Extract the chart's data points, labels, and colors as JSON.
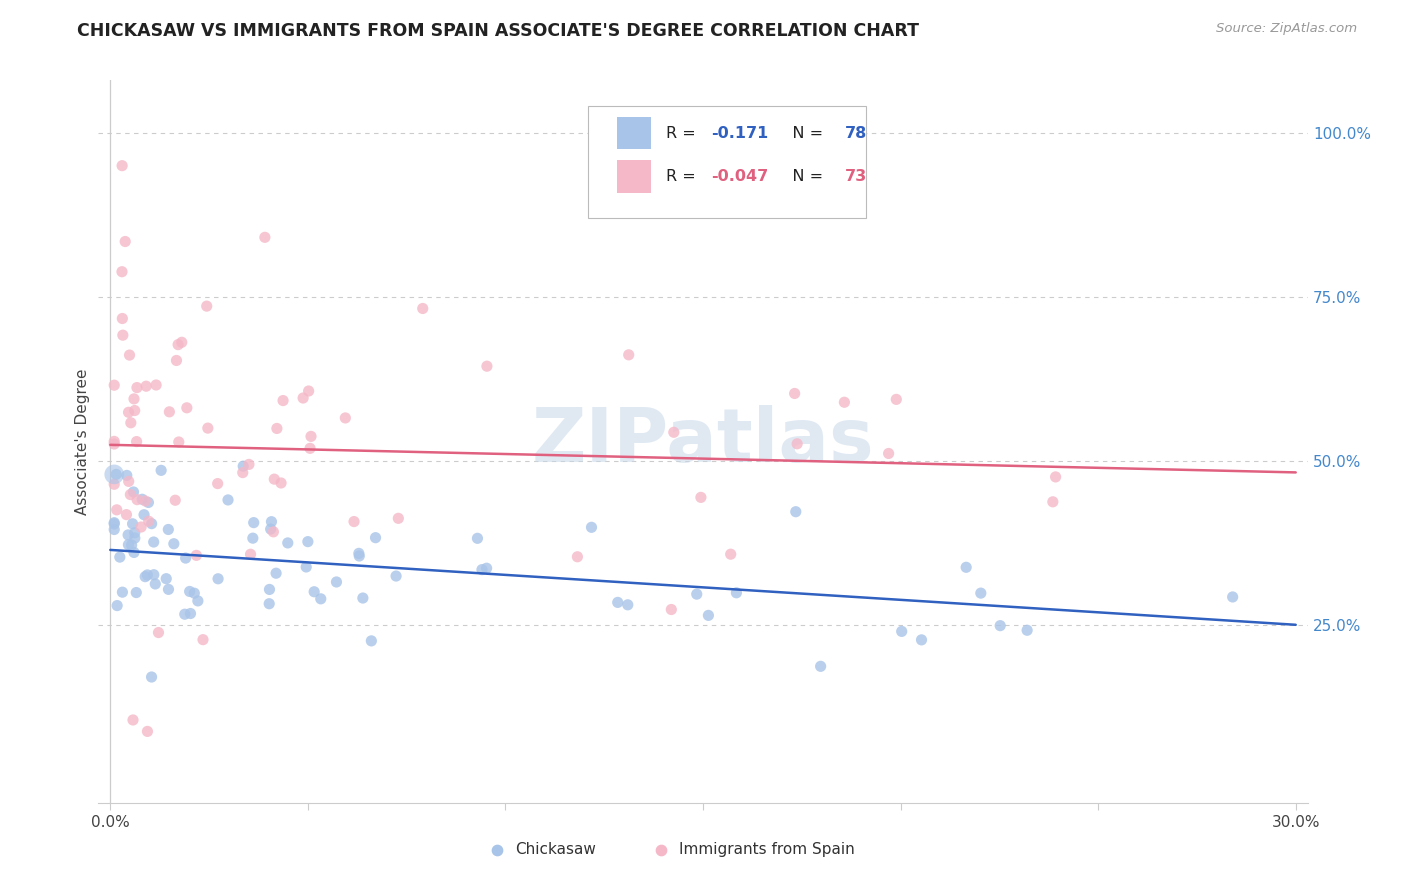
{
  "title": "CHICKASAW VS IMMIGRANTS FROM SPAIN ASSOCIATE'S DEGREE CORRELATION CHART",
  "source": "Source: ZipAtlas.com",
  "ylabel": "Associate's Degree",
  "right_yticks": [
    "100.0%",
    "75.0%",
    "50.0%",
    "25.0%"
  ],
  "right_ytick_vals": [
    1.0,
    0.75,
    0.5,
    0.25
  ],
  "watermark": "ZIPatlas",
  "blue_color": "#a8c4e8",
  "pink_color": "#f5b8c8",
  "blue_line_color": "#3060c0",
  "pink_line_color": "#e06080",
  "blue_r": "-0.171",
  "blue_n": "78",
  "pink_r": "-0.047",
  "pink_n": "73",
  "blue_intercept": 0.365,
  "blue_slope": -0.38,
  "pink_intercept": 0.525,
  "pink_slope": -0.14,
  "xlim_min": 0.0,
  "xlim_max": 0.3,
  "ylim_min": 0.0,
  "ylim_max": 1.05
}
